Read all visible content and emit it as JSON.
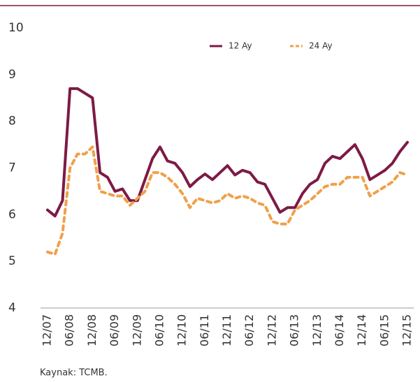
{
  "chart_data": {
    "type": "line",
    "categories": [
      "12/07",
      null,
      null,
      "06/08",
      null,
      null,
      "12/08",
      null,
      null,
      "06/09",
      null,
      null,
      "12/09",
      null,
      null,
      "06/10",
      null,
      null,
      "12/10",
      null,
      null,
      "06/11",
      null,
      null,
      "12/11",
      null,
      null,
      "06/12",
      null,
      null,
      "12/12",
      null,
      null,
      "06/13",
      null,
      null,
      "12/13",
      null,
      null,
      "06/14",
      null,
      null,
      "12/14",
      null,
      null,
      "06/15",
      null,
      null,
      "12/15"
    ],
    "series": [
      {
        "name": "12 Ay",
        "color": "#7d1a45",
        "dashed": false,
        "values": [
          6.1,
          5.97,
          6.3,
          8.7,
          8.7,
          8.6,
          8.5,
          6.9,
          6.8,
          6.5,
          6.55,
          6.3,
          6.3,
          6.75,
          7.2,
          7.45,
          7.15,
          7.1,
          6.9,
          6.6,
          6.75,
          6.87,
          6.75,
          6.9,
          7.05,
          6.85,
          6.95,
          6.9,
          6.7,
          6.65,
          6.35,
          6.05,
          6.15,
          6.15,
          6.45,
          6.65,
          6.75,
          7.1,
          7.25,
          7.2,
          7.35,
          7.5,
          7.2,
          6.75,
          6.85,
          6.95,
          7.1,
          7.35,
          7.55
        ]
      },
      {
        "name": "24 Ay",
        "color": "#f0a04b",
        "dashed": true,
        "values": [
          5.2,
          5.15,
          5.6,
          7.0,
          7.3,
          7.3,
          7.45,
          6.5,
          6.45,
          6.4,
          6.4,
          6.2,
          6.35,
          6.5,
          6.9,
          6.9,
          6.8,
          6.65,
          6.45,
          6.15,
          6.35,
          6.3,
          6.25,
          6.3,
          6.45,
          6.35,
          6.4,
          6.35,
          6.25,
          6.2,
          5.85,
          5.8,
          5.8,
          6.1,
          6.2,
          6.3,
          6.45,
          6.6,
          6.65,
          6.65,
          6.8,
          6.8,
          6.8,
          6.4,
          6.5,
          6.6,
          6.7,
          6.9,
          6.85
        ]
      }
    ],
    "ylim": [
      4,
      10
    ],
    "yticks": [
      4,
      5,
      6,
      7,
      8,
      9,
      10
    ],
    "grid": false,
    "source": "Kaynak: TCMB."
  }
}
